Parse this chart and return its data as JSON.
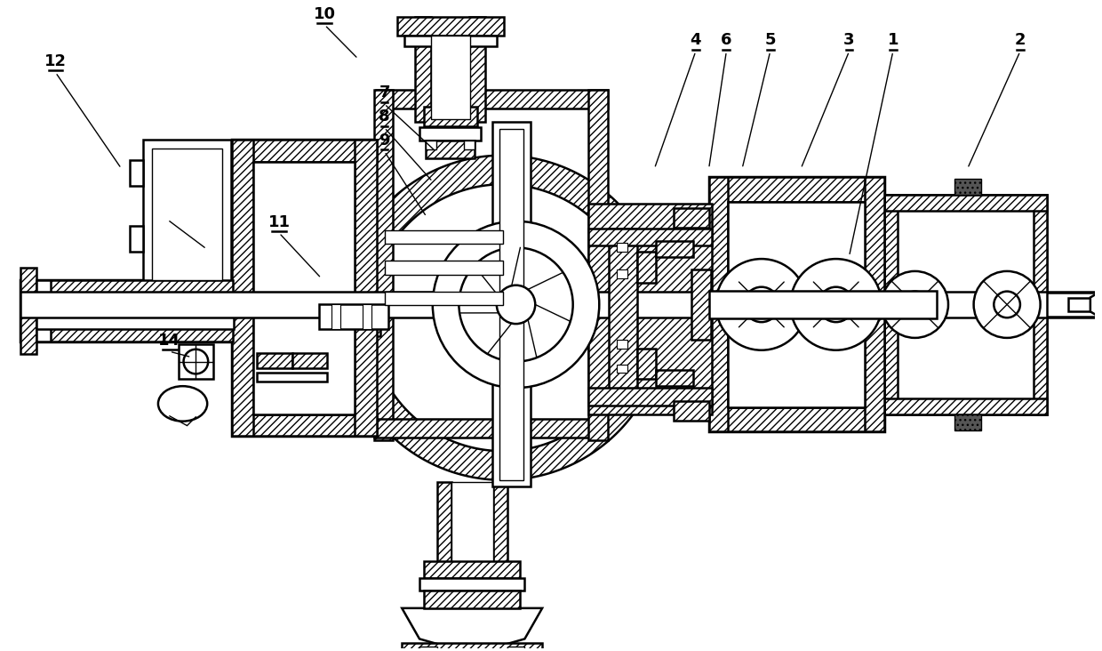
{
  "figure_width": 12.4,
  "figure_height": 7.32,
  "dpi": 100,
  "bg_color": "#ffffff",
  "lw_main": 1.8,
  "lw_thick": 2.5,
  "lw_thin": 1.0,
  "label_fontsize": 13,
  "labels": [
    [
      "1",
      1010,
      48,
      960,
      285
    ],
    [
      "2",
      1155,
      48,
      1095,
      185
    ],
    [
      "3",
      960,
      48,
      905,
      185
    ],
    [
      "4",
      785,
      48,
      738,
      185
    ],
    [
      "5",
      870,
      48,
      838,
      185
    ],
    [
      "6",
      820,
      48,
      800,
      185
    ],
    [
      "7",
      430,
      108,
      488,
      165
    ],
    [
      "8",
      430,
      135,
      485,
      200
    ],
    [
      "9",
      430,
      162,
      478,
      240
    ],
    [
      "10",
      362,
      18,
      400,
      60
    ],
    [
      "11",
      310,
      255,
      358,
      310
    ],
    [
      "12",
      55,
      72,
      130,
      185
    ],
    [
      "14",
      185,
      390,
      210,
      400
    ]
  ]
}
